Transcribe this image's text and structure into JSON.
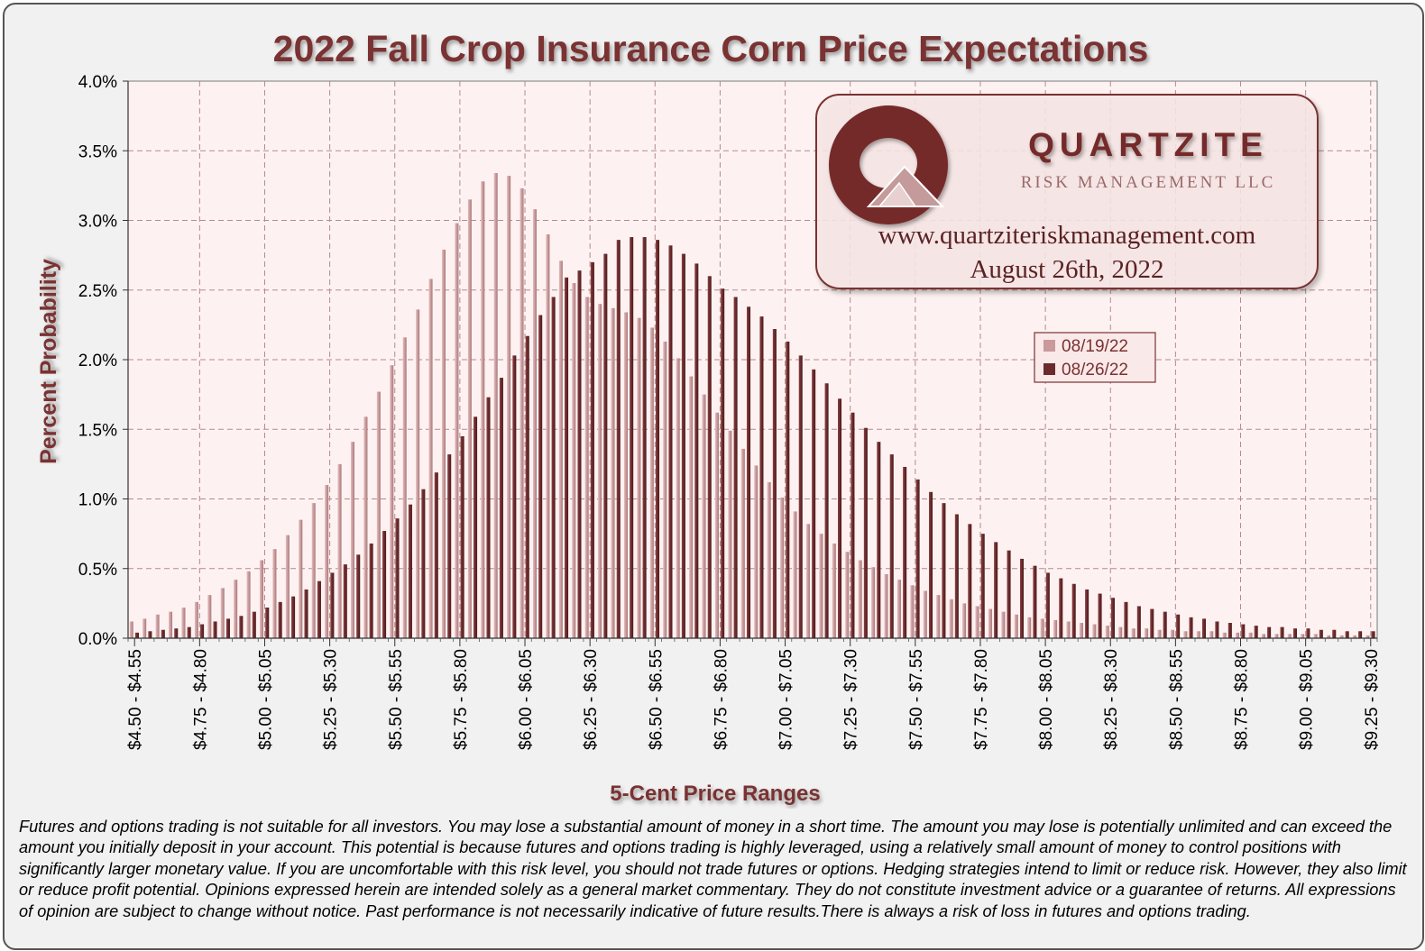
{
  "chart_data": {
    "type": "bar",
    "title": "2022 Fall Crop Insurance Corn Price Expectations",
    "xlabel": "5-Cent Price Ranges",
    "ylabel": "Percent Probability",
    "ylim": [
      0,
      4.0
    ],
    "y_ticks": [
      "0.0%",
      "0.5%",
      "1.0%",
      "1.5%",
      "2.0%",
      "2.5%",
      "3.0%",
      "3.5%",
      "4.0%"
    ],
    "x_tick_labels": [
      "$4.50 - $4.55",
      "$4.75 - $4.80",
      "$5.00 - $5.05",
      "$5.25 - $5.30",
      "$5.50 - $5.55",
      "$5.75 - $5.80",
      "$6.00 - $6.05",
      "$6.25 - $6.30",
      "$6.50 - $6.55",
      "$6.75 - $6.80",
      "$7.00 - $7.05",
      "$7.25 - $7.30",
      "$7.50 - $7.55",
      "$7.75 - $7.80",
      "$8.00 - $8.05",
      "$8.25 - $8.30",
      "$8.50 - $8.55",
      "$8.75 - $8.80",
      "$9.00 - $9.05",
      "$9.25 - $9.30"
    ],
    "category_start": 4.5,
    "category_step": 0.05,
    "category_count": 96,
    "legend_position": "upper-right",
    "series": [
      {
        "name": "08/19/22",
        "color": "#c9999b",
        "values": [
          0.12,
          0.14,
          0.17,
          0.19,
          0.22,
          0.26,
          0.31,
          0.36,
          0.42,
          0.48,
          0.56,
          0.64,
          0.74,
          0.85,
          0.97,
          1.1,
          1.25,
          1.41,
          1.59,
          1.77,
          1.96,
          2.16,
          2.36,
          2.58,
          2.79,
          2.98,
          3.15,
          3.28,
          3.34,
          3.32,
          3.23,
          3.08,
          2.9,
          2.71,
          2.55,
          2.45,
          2.4,
          2.37,
          2.34,
          2.3,
          2.23,
          2.13,
          2.01,
          1.88,
          1.75,
          1.62,
          1.49,
          1.36,
          1.24,
          1.12,
          1.01,
          0.91,
          0.82,
          0.75,
          0.68,
          0.62,
          0.56,
          0.51,
          0.46,
          0.42,
          0.38,
          0.34,
          0.31,
          0.28,
          0.25,
          0.23,
          0.21,
          0.19,
          0.17,
          0.15,
          0.14,
          0.13,
          0.12,
          0.11,
          0.1,
          0.09,
          0.08,
          0.07,
          0.07,
          0.06,
          0.06,
          0.05,
          0.05,
          0.05,
          0.04,
          0.04,
          0.04,
          0.03,
          0.03,
          0.03,
          0.03,
          0.03,
          0.02,
          0.02,
          0.02,
          0.02
        ]
      },
      {
        "name": "08/26/22",
        "color": "#6b2a2c",
        "values": [
          0.04,
          0.05,
          0.06,
          0.07,
          0.08,
          0.1,
          0.12,
          0.14,
          0.16,
          0.19,
          0.22,
          0.26,
          0.3,
          0.35,
          0.41,
          0.47,
          0.53,
          0.6,
          0.68,
          0.77,
          0.86,
          0.96,
          1.07,
          1.19,
          1.32,
          1.45,
          1.59,
          1.73,
          1.87,
          2.03,
          2.17,
          2.32,
          2.45,
          2.59,
          2.64,
          2.7,
          2.76,
          2.86,
          2.88,
          2.88,
          2.86,
          2.82,
          2.76,
          2.69,
          2.6,
          2.51,
          2.45,
          2.38,
          2.31,
          2.22,
          2.13,
          2.03,
          1.93,
          1.83,
          1.72,
          1.62,
          1.51,
          1.41,
          1.32,
          1.23,
          1.14,
          1.05,
          0.97,
          0.89,
          0.82,
          0.75,
          0.69,
          0.63,
          0.57,
          0.52,
          0.47,
          0.43,
          0.39,
          0.35,
          0.32,
          0.29,
          0.26,
          0.23,
          0.21,
          0.19,
          0.17,
          0.15,
          0.14,
          0.12,
          0.11,
          0.1,
          0.09,
          0.08,
          0.08,
          0.07,
          0.07,
          0.06,
          0.06,
          0.05,
          0.05,
          0.05
        ]
      }
    ]
  },
  "logo": {
    "name": "QUARTZITE",
    "tagline": "RISK MANAGEMENT LLC",
    "website": "www.quartziteriskmanagement.com",
    "date": "August 26th, 2022"
  },
  "disclaimer": "Futures and options trading is not suitable for all investors. You may lose a substantial amount of money in a short time.  The amount you may lose is potentially unlimited and can exceed the amount you initially deposit in your account. This potential is because futures and options trading is highly leveraged, using a relatively small amount of money to control positions with significantly larger monetary value. If you are uncomfortable with this risk level, you should not trade futures or options. Hedging strategies intend to limit or reduce risk. However, they also limit or reduce profit potential. Opinions expressed herein are intended solely as a general market commentary. They do not constitute investment advice or a guarantee of returns. All expressions of opinion are subject to change without notice. Past performance is not necessarily indicative of future results.There is always a risk of loss in futures and options trading.",
  "colors": {
    "title": "#7a3133",
    "plot_bg": "#fdf2f1",
    "grid": "#b58a8c",
    "series1": "#c9999b",
    "series2": "#6b2a2c"
  }
}
